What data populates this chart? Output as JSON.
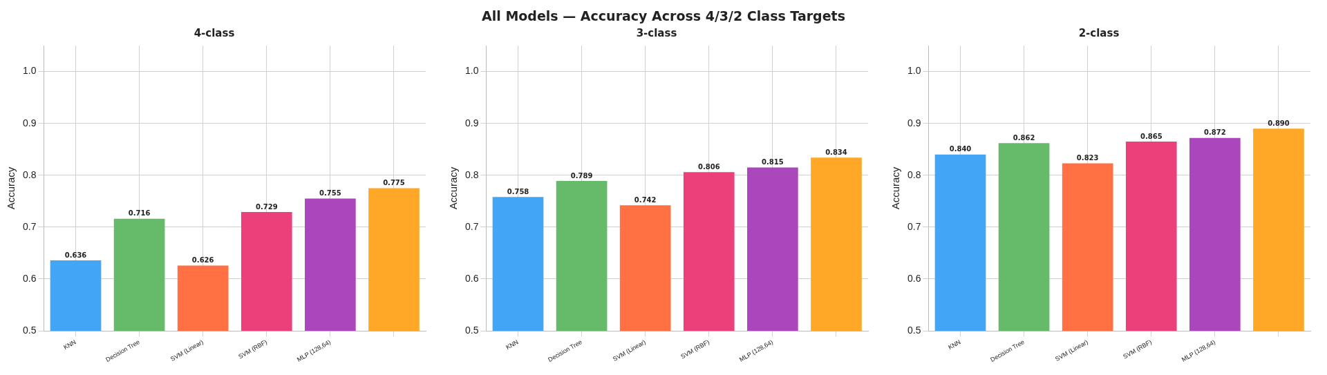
{
  "chart_data": [
    {
      "type": "bar",
      "annotations": [
        "All Models — Accuracy Across 4/3/2 Class Targets"
      ],
      "title": "4-class",
      "ylabel": "Accuracy",
      "categories": [
        "KNN",
        "Decision Tree",
        "SVM (Linear)",
        "SVM (RBF)",
        "MLP (128,64)",
        null
      ],
      "values": [
        0.636,
        0.716,
        0.626,
        0.729,
        0.755,
        0.775
      ],
      "value_labels": [
        "0.636",
        "0.716",
        "0.626",
        "0.729",
        "0.755",
        "0.775"
      ],
      "colors": [
        "#42a5f5",
        "#66bb6a",
        "#ff7043",
        "#ec407a",
        "#ab47bc",
        "#ffa726"
      ],
      "ylim": [
        0.5,
        1.05
      ],
      "yticks": [
        {
          "value": 0.5,
          "label": "0.5"
        },
        {
          "value": 0.6,
          "label": "0.6"
        },
        {
          "value": 0.7,
          "label": "0.7"
        },
        {
          "value": 0.8,
          "label": "0.8"
        },
        {
          "value": 0.9,
          "label": "0.9"
        },
        {
          "value": 1.0,
          "label": "1.0"
        }
      ],
      "grid": true
    },
    {
      "type": "bar",
      "title": "3-class",
      "ylabel": "Accuracy",
      "categories": [
        "KNN",
        "Decision Tree",
        "SVM (Linear)",
        "SVM (RBF)",
        "MLP (128,64)",
        null
      ],
      "values": [
        0.758,
        0.789,
        0.742,
        0.806,
        0.815,
        0.834
      ],
      "value_labels": [
        "0.758",
        "0.789",
        "0.742",
        "0.806",
        "0.815",
        "0.834"
      ],
      "colors": [
        "#42a5f5",
        "#66bb6a",
        "#ff7043",
        "#ec407a",
        "#ab47bc",
        "#ffa726"
      ],
      "ylim": [
        0.5,
        1.05
      ],
      "yticks": [
        {
          "value": 0.5,
          "label": "0.5"
        },
        {
          "value": 0.6,
          "label": "0.6"
        },
        {
          "value": 0.7,
          "label": "0.7"
        },
        {
          "value": 0.8,
          "label": "0.8"
        },
        {
          "value": 0.9,
          "label": "0.9"
        },
        {
          "value": 1.0,
          "label": "1.0"
        }
      ],
      "grid": true
    },
    {
      "type": "bar",
      "title": "2-class",
      "ylabel": "Accuracy",
      "categories": [
        "KNN",
        "Decision Tree",
        "SVM (Linear)",
        "SVM (RBF)",
        "MLP (128,64)",
        null
      ],
      "values": [
        0.84,
        0.862,
        0.823,
        0.865,
        0.872,
        0.89
      ],
      "value_labels": [
        "0.840",
        "0.862",
        "0.823",
        "0.865",
        "0.872",
        "0.890"
      ],
      "colors": [
        "#42a5f5",
        "#66bb6a",
        "#ff7043",
        "#ec407a",
        "#ab47bc",
        "#ffa726"
      ],
      "ylim": [
        0.5,
        1.05
      ],
      "yticks": [
        {
          "value": 0.5,
          "label": "0.5"
        },
        {
          "value": 0.6,
          "label": "0.6"
        },
        {
          "value": 0.7,
          "label": "0.7"
        },
        {
          "value": 0.8,
          "label": "0.8"
        },
        {
          "value": 0.9,
          "label": "0.9"
        },
        {
          "value": 1.0,
          "label": "1.0"
        }
      ],
      "grid": true
    }
  ]
}
